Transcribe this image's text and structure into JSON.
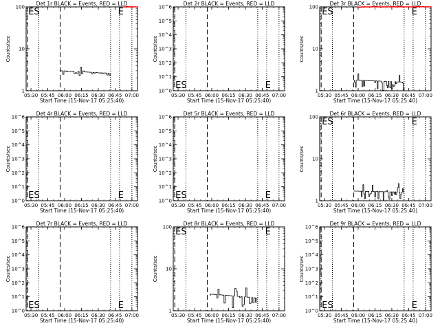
{
  "figure": {
    "xlabel": "Start Time (15-Nov-17 05:25:40)",
    "ylabel": "Counts/sec",
    "x_ticks": [
      "05:30",
      "05:45",
      "06:00",
      "06:15",
      "06:30",
      "06:45",
      "07:00"
    ],
    "colors": {
      "events": "#000000",
      "lld": "#ff0000",
      "axes": "#000000",
      "background": "#ffffff"
    }
  },
  "chart_data": [
    {
      "type": "line",
      "title": "Det 1r BLACK = Events, RED = LLD",
      "ylim": [
        1,
        100
      ],
      "yscale": "log",
      "y_ticks": [
        "1",
        "10",
        "100"
      ],
      "x_range": [
        "05:25:40",
        "07:05"
      ],
      "markers": [
        {
          "label": "ES",
          "time": "05:27"
        },
        {
          "label": "E",
          "time": "06:47"
        }
      ],
      "dashed_lines": [
        "05:27",
        "05:56"
      ],
      "dotted_lines": [
        "05:37",
        "06:41",
        "06:49",
        "07:00"
      ],
      "series": [
        {
          "name": "Events",
          "color": "#000000",
          "x": [
            "05:56",
            "06:41"
          ],
          "y": [
            3.0,
            2.6
          ],
          "noise": [
            2.3,
            3.6
          ],
          "points": 40
        },
        {
          "name": "LLD",
          "color": "#ff0000",
          "x": [
            "06:52",
            "07:05"
          ],
          "y": [
            100,
            100
          ],
          "noise": [
            96,
            102
          ],
          "points": 8
        }
      ]
    },
    {
      "type": "line",
      "title": "Det 2r BLACK = Events, RED = LLD",
      "ylim": [
        1,
        1000000
      ],
      "yscale": "log",
      "y_ticks": [
        "10^0",
        "10^1",
        "10^2",
        "10^3",
        "10^4",
        "10^5",
        "10^6"
      ],
      "x_range": [
        "05:25:40",
        "07:05"
      ],
      "markers": [
        {
          "label": "ES",
          "time": "05:27"
        },
        {
          "label": "E",
          "time": "06:47"
        }
      ],
      "dashed_lines": [
        "05:27",
        "05:56"
      ],
      "dotted_lines": [
        "05:37",
        "06:41",
        "06:49",
        "07:00"
      ],
      "series": []
    },
    {
      "type": "line",
      "title": "Det 3r BLACK = Events, RED = LLD",
      "ylim": [
        1,
        100
      ],
      "yscale": "log",
      "y_ticks": [
        "1",
        "10",
        "100"
      ],
      "x_range": [
        "05:25:40",
        "07:05"
      ],
      "markers": [
        {
          "label": "ES",
          "time": "05:27"
        },
        {
          "label": "E",
          "time": "06:47"
        }
      ],
      "dashed_lines": [
        "05:27",
        "05:56"
      ],
      "dotted_lines": [
        "05:37",
        "06:41",
        "06:49",
        "07:00"
      ],
      "series": [
        {
          "name": "Events",
          "color": "#000000",
          "x": [
            "05:56",
            "06:41"
          ],
          "y": [
            1.8,
            1.6
          ],
          "noise": [
            1.0,
            2.6
          ],
          "points": 60
        },
        {
          "name": "LLD",
          "color": "#ff0000",
          "x": [
            "06:00",
            "07:05"
          ],
          "y": [
            100,
            100
          ],
          "noise": [
            97,
            102
          ],
          "points": 20
        }
      ]
    },
    {
      "type": "line",
      "title": "Det 4r BLACK = Events, RED = LLD",
      "ylim": [
        1,
        1000000
      ],
      "yscale": "log",
      "y_ticks": [
        "10^0",
        "10^1",
        "10^2",
        "10^3",
        "10^4",
        "10^5",
        "10^6"
      ],
      "x_range": [
        "05:25:40",
        "07:05"
      ],
      "markers": [
        {
          "label": "ES",
          "time": "05:27"
        },
        {
          "label": "E",
          "time": "06:47"
        }
      ],
      "dashed_lines": [
        "05:27",
        "05:56"
      ],
      "dotted_lines": [
        "05:37",
        "06:41",
        "06:49",
        "07:00"
      ],
      "series": []
    },
    {
      "type": "line",
      "title": "Det 5r BLACK = Events, RED = LLD",
      "ylim": [
        1,
        1000000
      ],
      "yscale": "log",
      "y_ticks": [
        "10^0",
        "10^1",
        "10^2",
        "10^3",
        "10^4",
        "10^5",
        "10^6"
      ],
      "x_range": [
        "05:25:40",
        "07:05"
      ],
      "markers": [
        {
          "label": "ES",
          "time": "05:27"
        },
        {
          "label": "E",
          "time": "06:47"
        }
      ],
      "dashed_lines": [
        "05:27",
        "05:56"
      ],
      "dotted_lines": [
        "05:37",
        "06:41",
        "06:49",
        "07:00"
      ],
      "series": []
    },
    {
      "type": "line",
      "title": "Det 6r BLACK = Events, RED = LLD",
      "ylim": [
        1,
        100
      ],
      "yscale": "log",
      "y_ticks": [
        "1",
        "10",
        "100"
      ],
      "x_range": [
        "05:25:40",
        "07:05"
      ],
      "markers": [
        {
          "label": "ES",
          "time": "05:27"
        },
        {
          "label": "E",
          "time": "06:47"
        }
      ],
      "dashed_lines": [
        "05:27",
        "05:56"
      ],
      "dotted_lines": [
        "05:37",
        "06:41",
        "06:49",
        "07:00"
      ],
      "series": [
        {
          "name": "Events",
          "color": "#000000",
          "x": [
            "05:56",
            "06:41"
          ],
          "y": [
            1.7,
            1.6
          ],
          "noise": [
            1.0,
            2.8
          ],
          "points": 60
        }
      ]
    },
    {
      "type": "line",
      "title": "Det 7r BLACK = Events, RED = LLD",
      "ylim": [
        1,
        1000000
      ],
      "yscale": "log",
      "y_ticks": [
        "10^0",
        "10^1",
        "10^2",
        "10^3",
        "10^4",
        "10^5",
        "10^6"
      ],
      "x_range": [
        "05:25:40",
        "07:05"
      ],
      "markers": [
        {
          "label": "ES",
          "time": "05:27"
        },
        {
          "label": "E",
          "time": "06:47"
        }
      ],
      "dashed_lines": [
        "05:27",
        "05:56"
      ],
      "dotted_lines": [
        "05:37",
        "06:41",
        "06:49",
        "07:00"
      ],
      "series": []
    },
    {
      "type": "line",
      "title": "Det 8r BLACK = Events, RED = LLD",
      "ylim": [
        1,
        100
      ],
      "yscale": "log",
      "y_ticks": [
        "1",
        "10",
        "100"
      ],
      "x_range": [
        "05:25:40",
        "07:05"
      ],
      "markers": [
        {
          "label": "ES",
          "time": "05:27"
        },
        {
          "label": "E",
          "time": "06:47"
        }
      ],
      "dashed_lines": [
        "05:27",
        "05:56"
      ],
      "dotted_lines": [
        "05:37",
        "06:41",
        "06:49",
        "07:00"
      ],
      "series": [
        {
          "name": "Events",
          "color": "#000000",
          "x": [
            "05:58",
            "06:41"
          ],
          "y": [
            2.5,
            2.0
          ],
          "noise": [
            1.0,
            3.8
          ],
          "points": 40
        }
      ]
    },
    {
      "type": "line",
      "title": "Det 9r BLACK = Events, RED = LLD",
      "ylim": [
        1,
        1000000
      ],
      "yscale": "log",
      "y_ticks": [
        "10^0",
        "10^1",
        "10^2",
        "10^3",
        "10^4",
        "10^5",
        "10^6"
      ],
      "x_range": [
        "05:25:40",
        "07:05"
      ],
      "markers": [
        {
          "label": "ES",
          "time": "05:27"
        },
        {
          "label": "E",
          "time": "06:47"
        }
      ],
      "dashed_lines": [
        "05:27",
        "05:56"
      ],
      "dotted_lines": [
        "05:37",
        "06:41",
        "06:49",
        "07:00"
      ],
      "series": []
    }
  ]
}
